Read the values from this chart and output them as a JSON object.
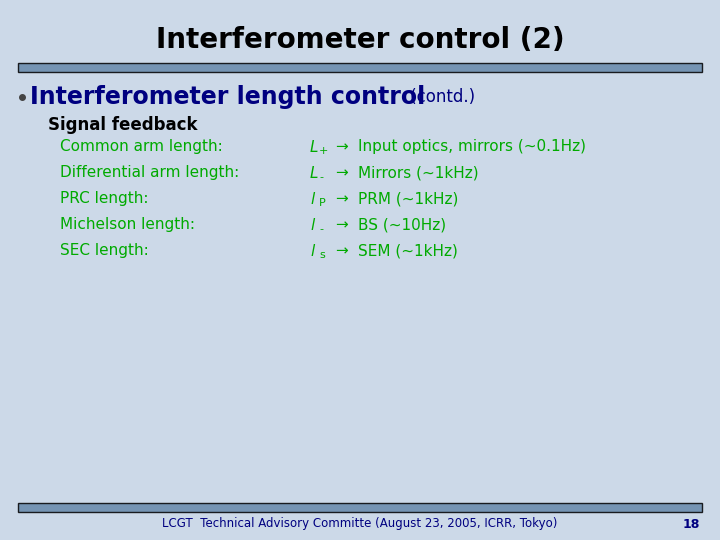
{
  "title": "Interferometer control (2)",
  "title_fontsize": 20,
  "title_color": "#000000",
  "bg_color": "#ccd9e8",
  "header_bar_color": "#6688aa",
  "header_bar_alpha": 0.85,
  "bullet_heading_bold": "Interferometer length control",
  "bullet_heading_normal": " (contd.)",
  "bullet_heading_fontsize": 17,
  "bullet_heading_color": "#000080",
  "subheading": "Signal feedback",
  "subheading_fontsize": 12,
  "subheading_color": "#000000",
  "green_color": "#00aa00",
  "rows": [
    {
      "label": "Common arm length:",
      "symbol": "L+",
      "symbol_sub": "+",
      "arrow": "→",
      "desc": "Input optics, mirrors (~0.1Hz)"
    },
    {
      "label": "Differential arm length:",
      "symbol": "L-",
      "symbol_sub": "-",
      "arrow": "→",
      "desc": "Mirrors (~1kHz)"
    },
    {
      "label": "PRC length:",
      "symbol": "lp",
      "symbol_sub": "p",
      "arrow": "→",
      "desc": "PRM (~1kHz)"
    },
    {
      "label": "Michelson length:",
      "symbol": "l-",
      "symbol_sub": "-",
      "arrow": "→",
      "desc": "BS (~10Hz)"
    },
    {
      "label": "SEC length:",
      "symbol": "ls",
      "symbol_sub": "s",
      "arrow": "→",
      "desc": "SEM (~1kHz)"
    }
  ],
  "row_labels_plain": [
    "L",
    "L",
    "l",
    "l",
    "l"
  ],
  "row_subs": [
    "+",
    "-",
    "P",
    "-",
    "s"
  ],
  "footer_text": "LCGT  Technical Advisory Committe (August 23, 2005, ICRR, Tokyo)",
  "footer_number": "18",
  "footer_bar_color": "#6688aa",
  "footer_text_color": "#000080"
}
